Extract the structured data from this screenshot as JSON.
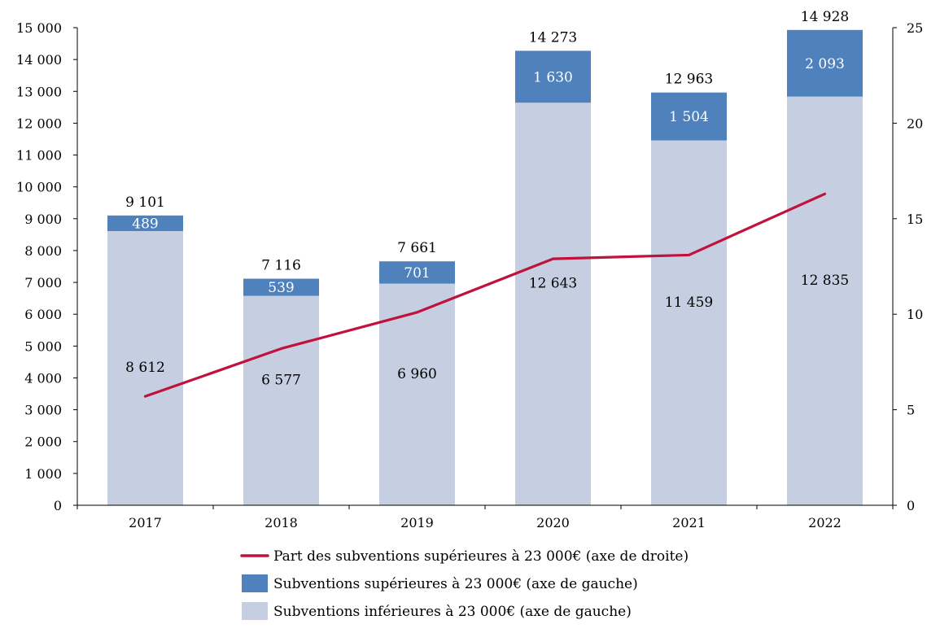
{
  "chart_data": {
    "type": "bar",
    "stacked": true,
    "categories": [
      "2017",
      "2018",
      "2019",
      "2020",
      "2021",
      "2022"
    ],
    "series": [
      {
        "name": "Subventions inférieures à 23 000€ (axe de gauche)",
        "axis": "left",
        "type": "bar",
        "color": "#c5cfe1",
        "values": [
          8612,
          6577,
          6960,
          12643,
          11459,
          12835
        ],
        "labels": [
          "8 612",
          "6 577",
          "6 960",
          "12 643",
          "11 459",
          "12 835"
        ]
      },
      {
        "name": "Subventions supérieures à 23 000€ (axe de gauche)",
        "axis": "left",
        "type": "bar",
        "color": "#4f81bd",
        "values": [
          489,
          539,
          701,
          1630,
          1504,
          2093
        ],
        "labels": [
          "489",
          "539",
          "701",
          "1 630",
          "1 504",
          "2 093"
        ]
      },
      {
        "name": "Part des subventions supérieures à 23 000€ (axe de droite)",
        "axis": "right",
        "type": "line",
        "color": "#c0123c",
        "values": [
          5.7,
          8.2,
          10.1,
          12.9,
          13.1,
          16.3
        ]
      }
    ],
    "totals": {
      "values": [
        9101,
        7116,
        7661,
        14273,
        12963,
        14928
      ],
      "labels": [
        "9 101",
        "7 116",
        "7 661",
        "14 273",
        "12 963",
        "14 928"
      ]
    },
    "ylim_left": [
      0,
      15000
    ],
    "yticks_left": [
      "0",
      "1 000",
      "2 000",
      "3 000",
      "4 000",
      "5 000",
      "6 000",
      "7 000",
      "8 000",
      "9 000",
      "10 000",
      "11 000",
      "12 000",
      "13 000",
      "14 000",
      "15 000"
    ],
    "ylim_right": [
      0,
      25
    ],
    "yticks_right": [
      "0",
      "5",
      "10",
      "15",
      "20",
      "25"
    ],
    "grid": false,
    "legend_position": "bottom"
  }
}
